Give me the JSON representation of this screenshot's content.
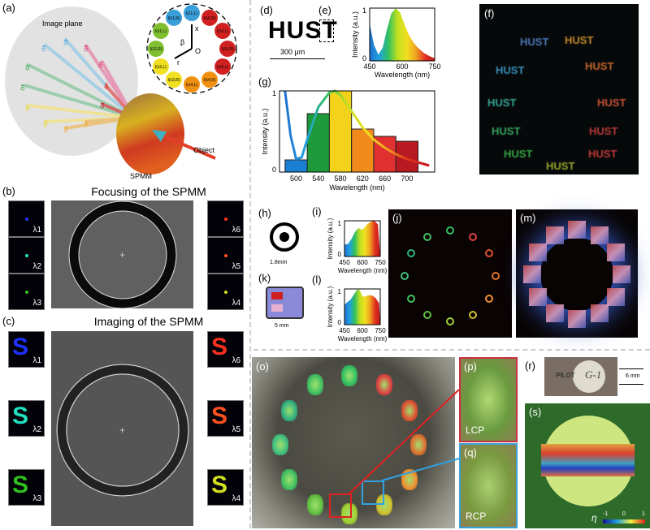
{
  "panels": {
    "a": "(a)",
    "b": "(b)",
    "c": "(c)",
    "d": "(d)",
    "e": "(e)",
    "f": "(f)",
    "g": "(g)",
    "h": "(h)",
    "i": "(i)",
    "j": "(j)",
    "k": "(k)",
    "l": "(l)",
    "m": "(m)",
    "o": "(o)",
    "p": "(p)",
    "q": "(q)",
    "r": "(r)",
    "s": "(s)"
  },
  "a": {
    "image_plane": "Image plane",
    "spmm": "SPMM",
    "object": "Object",
    "axis_x": "x",
    "axis_r": "r",
    "beta": "β",
    "origin": "O",
    "channels": [
      "I(λ1,L)",
      "I(λ6,R)",
      "I(λ6,L)",
      "I(λ5,R)",
      "I(λ5,L)",
      "I(λ4,R)",
      "I(λ4,L)",
      "I(λ3,R)",
      "I(λ2,L)",
      "I(λ2,R)",
      "I(λ1,L)",
      "I(λ1,R)"
    ]
  },
  "b": {
    "title": "Focusing of the SPMM",
    "left": [
      "λ1",
      "λ2",
      "λ3"
    ],
    "right": [
      "λ6",
      "λ5",
      "λ4"
    ]
  },
  "c": {
    "title": "Imaging of the SPMM",
    "left": [
      "λ1",
      "λ2",
      "λ3"
    ],
    "right": [
      "λ6",
      "λ5",
      "λ4"
    ],
    "glyph": "S"
  },
  "d": {
    "text": "HUST",
    "scale": "300 μm"
  },
  "f": {
    "word": "HUST"
  },
  "h": {
    "scale": "1.8mm"
  },
  "k": {
    "scale": "5 mm"
  },
  "p": {
    "label": "LCP"
  },
  "q": {
    "label": "RCP"
  },
  "r": {
    "brand": "PILOT",
    "model": "G-1",
    "scale": "6 mm"
  },
  "s": {
    "symbol": "η",
    "cb_min": "-1",
    "cb_mid": "0",
    "cb_max": "1"
  },
  "chart_data": [
    {
      "id": "e",
      "type": "area",
      "xlabel": "Wavelength (nm)",
      "ylabel": "Intensity (a.u.)",
      "xlim": [
        450,
        750
      ],
      "ylim": [
        0,
        1
      ],
      "xticks": [
        "450",
        "600",
        "750"
      ],
      "yticks": [
        "0",
        "1"
      ],
      "x": [
        450,
        470,
        490,
        510,
        530,
        550,
        570,
        590,
        610,
        630,
        650,
        670,
        700,
        730,
        750
      ],
      "y": [
        0.7,
        0.3,
        0.12,
        0.25,
        0.6,
        0.9,
        1.0,
        0.92,
        0.7,
        0.5,
        0.36,
        0.26,
        0.15,
        0.08,
        0.05
      ]
    },
    {
      "id": "g",
      "type": "bar",
      "xlabel": "Wavelength (nm)",
      "ylabel": "Intensity (a.u.)",
      "ylim": [
        0,
        1
      ],
      "yticks": [
        "0",
        "1"
      ],
      "categories": [
        "500",
        "540",
        "580",
        "620",
        "660",
        "700"
      ],
      "values": [
        0.15,
        0.72,
        1.0,
        0.53,
        0.44,
        0.38
      ],
      "colors": [
        "#1a7fd0",
        "#1e9a3a",
        "#f2d21a",
        "#f08a1a",
        "#e03030",
        "#b81a22"
      ],
      "curve_x": [
        480,
        490,
        500,
        510,
        520,
        540,
        560,
        570,
        580,
        600,
        620,
        640,
        660,
        680,
        700,
        720,
        740
      ],
      "curve_y": [
        1.0,
        0.45,
        0.16,
        0.18,
        0.4,
        0.8,
        0.98,
        1.0,
        0.95,
        0.75,
        0.55,
        0.4,
        0.3,
        0.22,
        0.16,
        0.12,
        0.08
      ]
    },
    {
      "id": "i",
      "type": "area",
      "xlabel": "Wavelength (nm)",
      "ylabel": "Intensity (a.u.)",
      "xlim": [
        450,
        750
      ],
      "ylim": [
        0,
        1
      ],
      "xticks": [
        "450",
        "600",
        "750"
      ],
      "yticks": [
        "0",
        "1"
      ],
      "x": [
        450,
        480,
        510,
        540,
        570,
        590,
        610,
        640,
        670,
        700,
        730,
        750
      ],
      "y": [
        0.33,
        0.35,
        0.5,
        0.7,
        0.8,
        0.75,
        0.78,
        0.9,
        0.97,
        1.0,
        0.9,
        0.0
      ]
    },
    {
      "id": "l",
      "type": "area",
      "xlabel": "Wavelength (nm)",
      "ylabel": "Intensity (a.u.)",
      "xlim": [
        450,
        750
      ],
      "ylim": [
        0,
        1
      ],
      "xticks": [
        "450",
        "600",
        "750"
      ],
      "yticks": [
        "0",
        "1"
      ],
      "x": [
        450,
        470,
        500,
        530,
        560,
        580,
        600,
        620,
        650,
        680,
        710,
        740,
        750
      ],
      "y": [
        0.55,
        0.62,
        0.7,
        0.85,
        1.0,
        0.95,
        0.8,
        0.78,
        0.82,
        0.82,
        0.75,
        0.6,
        0.0
      ]
    }
  ]
}
